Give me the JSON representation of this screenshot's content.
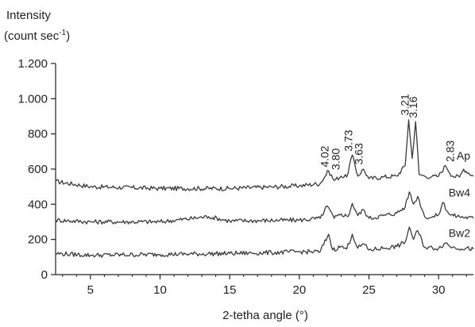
{
  "chart_data": {
    "type": "line",
    "ylabel_line1": "Intensity",
    "ylabel_line2_main": "(count sec",
    "ylabel_line2_sup": "-1",
    "ylabel_line2_end": ")",
    "xlabel": "2-tetha angle (°)",
    "xlim": [
      2.5,
      32.5
    ],
    "ylim": [
      0,
      1200
    ],
    "x_ticks": [
      5,
      10,
      15,
      20,
      25,
      30
    ],
    "x_tick_labels": [
      "5",
      "10",
      "15",
      "20",
      "25",
      "30"
    ],
    "y_ticks": [
      0,
      200,
      400,
      600,
      800,
      1000,
      1200
    ],
    "y_tick_labels": [
      "0",
      "200",
      "400",
      "600",
      "800",
      "1.000",
      "1.200"
    ],
    "series": [
      {
        "name": "Ap",
        "x": [
          2.5,
          5,
          10,
          15,
          18,
          20,
          21.5,
          22.1,
          22.5,
          23.0,
          23.4,
          23.8,
          24.2,
          24.6,
          25.0,
          26.0,
          27.0,
          27.6,
          27.85,
          28.1,
          28.35,
          28.6,
          29.0,
          29.5,
          30.0,
          30.5,
          31.0,
          31.5,
          31.8,
          32.5
        ],
        "y": [
          530,
          500,
          490,
          490,
          498,
          505,
          518,
          590,
          535,
          560,
          555,
          680,
          560,
          600,
          545,
          555,
          560,
          620,
          880,
          660,
          870,
          570,
          560,
          555,
          560,
          620,
          560,
          555,
          600,
          560
        ]
      },
      {
        "name": "Bw4",
        "x": [
          2.5,
          5,
          10,
          13.5,
          15,
          20,
          21.5,
          22.0,
          22.5,
          23.0,
          23.5,
          23.8,
          24.2,
          24.6,
          25.0,
          26.0,
          27.0,
          27.6,
          27.9,
          28.2,
          28.5,
          29.0,
          29.5,
          30.0,
          30.3,
          30.8,
          31.5,
          32.5
        ],
        "y": [
          310,
          300,
          300,
          330,
          305,
          310,
          320,
          390,
          320,
          345,
          330,
          405,
          335,
          370,
          320,
          335,
          350,
          385,
          470,
          400,
          445,
          330,
          325,
          340,
          410,
          340,
          330,
          320
        ]
      },
      {
        "name": "Bw2",
        "x": [
          2.5,
          5,
          10,
          15,
          18,
          20,
          21.5,
          22.1,
          22.4,
          23.0,
          23.4,
          23.8,
          24.2,
          24.6,
          25.0,
          26.0,
          27.0,
          27.6,
          27.9,
          28.2,
          28.5,
          29.0,
          30.0,
          30.5,
          31.0,
          32.5
        ],
        "y": [
          120,
          110,
          115,
          120,
          125,
          130,
          130,
          230,
          140,
          160,
          145,
          230,
          150,
          175,
          140,
          150,
          160,
          185,
          270,
          200,
          250,
          155,
          150,
          180,
          155,
          145
        ]
      }
    ],
    "peak_labels": [
      {
        "text": "4.02",
        "x": 22.1,
        "y": 610
      },
      {
        "text": "3.80",
        "x": 22.9,
        "y": 595
      },
      {
        "text": "3.73",
        "x": 23.8,
        "y": 700
      },
      {
        "text": "3.63",
        "x": 24.55,
        "y": 625
      },
      {
        "text": "3.21",
        "x": 27.85,
        "y": 905
      },
      {
        "text": "3.16",
        "x": 28.45,
        "y": 890
      },
      {
        "text": "2.83",
        "x": 31.1,
        "y": 640
      }
    ],
    "grid": false,
    "legend": "inline labels at right"
  }
}
